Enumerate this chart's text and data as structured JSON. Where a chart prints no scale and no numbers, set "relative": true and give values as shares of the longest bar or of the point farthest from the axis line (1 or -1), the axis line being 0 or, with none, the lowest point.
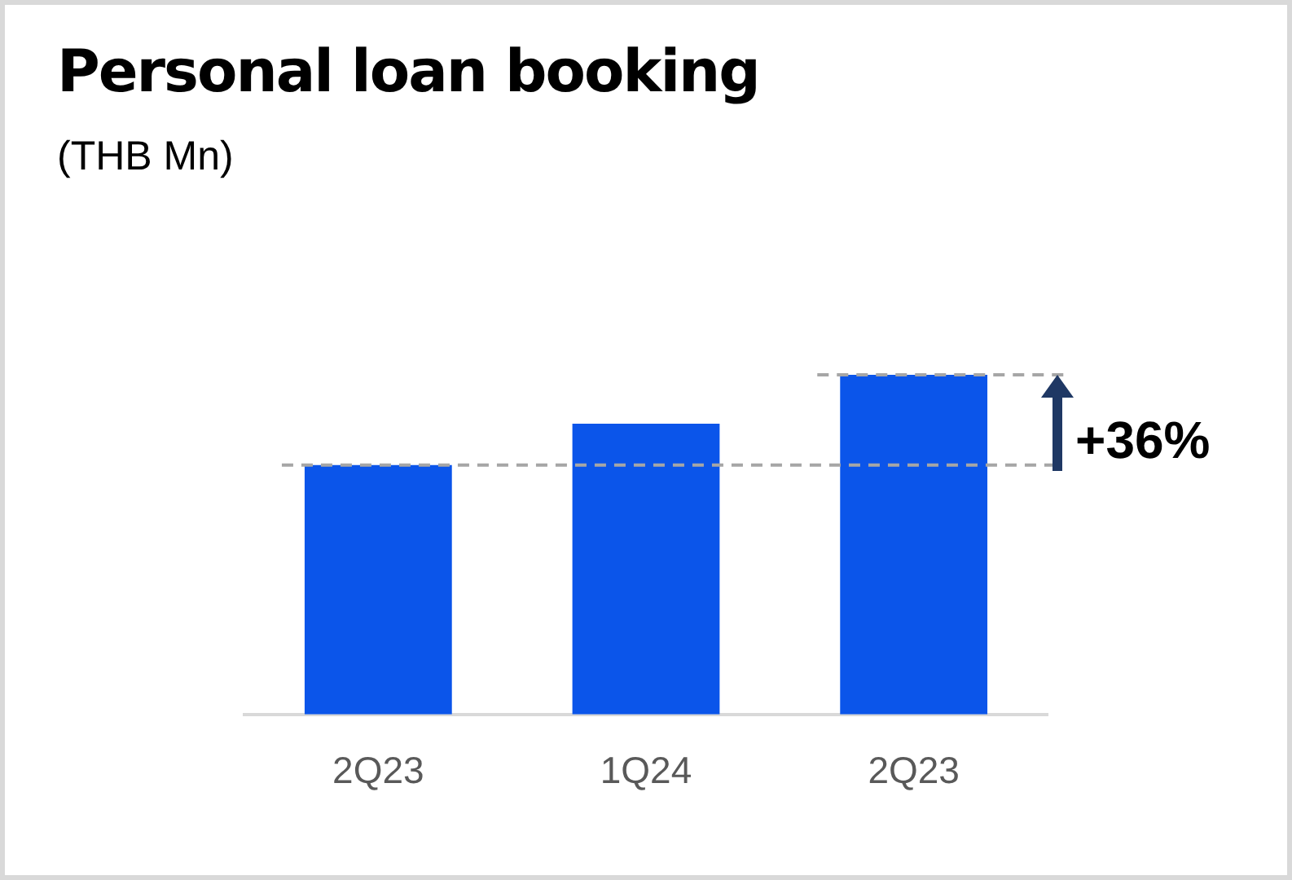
{
  "chart_data": {
    "type": "bar",
    "title": "Personal loan booking",
    "subtitle": "(THB Mn)",
    "categories": [
      "2Q23",
      "1Q24",
      "2Q23"
    ],
    "values": [
      0.734,
      0.856,
      1
    ],
    "color": "#0b55ea",
    "relative": true,
    "grid": false,
    "legend": false,
    "ref_lines": [
      {
        "axis": "y",
        "value": 0.734,
        "color": "#a6a6a6",
        "line_style": "dashed"
      },
      {
        "axis": "y",
        "value": 1,
        "color": "#a6a6a6",
        "line_style": "dashed"
      }
    ],
    "annotations": [
      "+36%"
    ]
  }
}
